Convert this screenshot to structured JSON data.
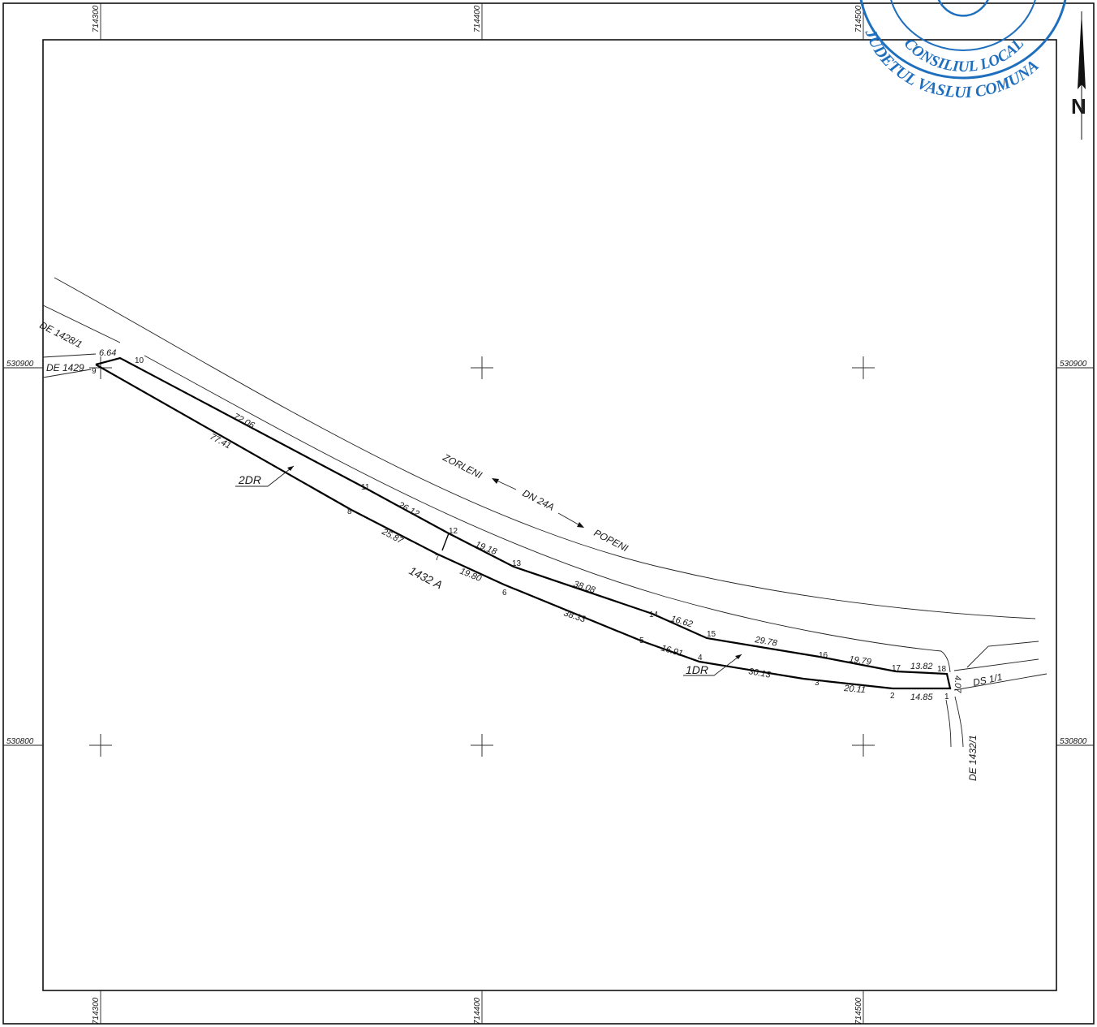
{
  "grid": {
    "x_labels": [
      "714300",
      "714400",
      "714500"
    ],
    "y_labels": [
      "530900",
      "530800"
    ]
  },
  "north_label": "N",
  "stamp_text": {
    "line1": "JUDETUL VASLUI COMUNA",
    "line2": "CONSILIUL LOCAL"
  },
  "road": {
    "name": "DN 24A",
    "towards_left": "ZORLENI",
    "towards_right": "POPENI"
  },
  "parcel_id": "1432 A",
  "callouts": [
    "2DR",
    "1DR"
  ],
  "neighbors": [
    "DE 1428/1",
    "DE 1429",
    "DS 1/1",
    "DE 1432/1"
  ],
  "points": [
    "1",
    "2",
    "3",
    "4",
    "5",
    "6",
    "7",
    "8",
    "9",
    "10",
    "11",
    "12",
    "13",
    "14",
    "15",
    "16",
    "17",
    "18"
  ],
  "segment_lengths": [
    "6.64",
    "72.06",
    "77.41",
    "26.12",
    "25.87",
    "19.18",
    "19.80",
    "38.08",
    "38.33",
    "16.62",
    "16.91",
    "29.78",
    "30.13",
    "19.79",
    "20.11",
    "13.82",
    "14.85",
    "4.07"
  ]
}
